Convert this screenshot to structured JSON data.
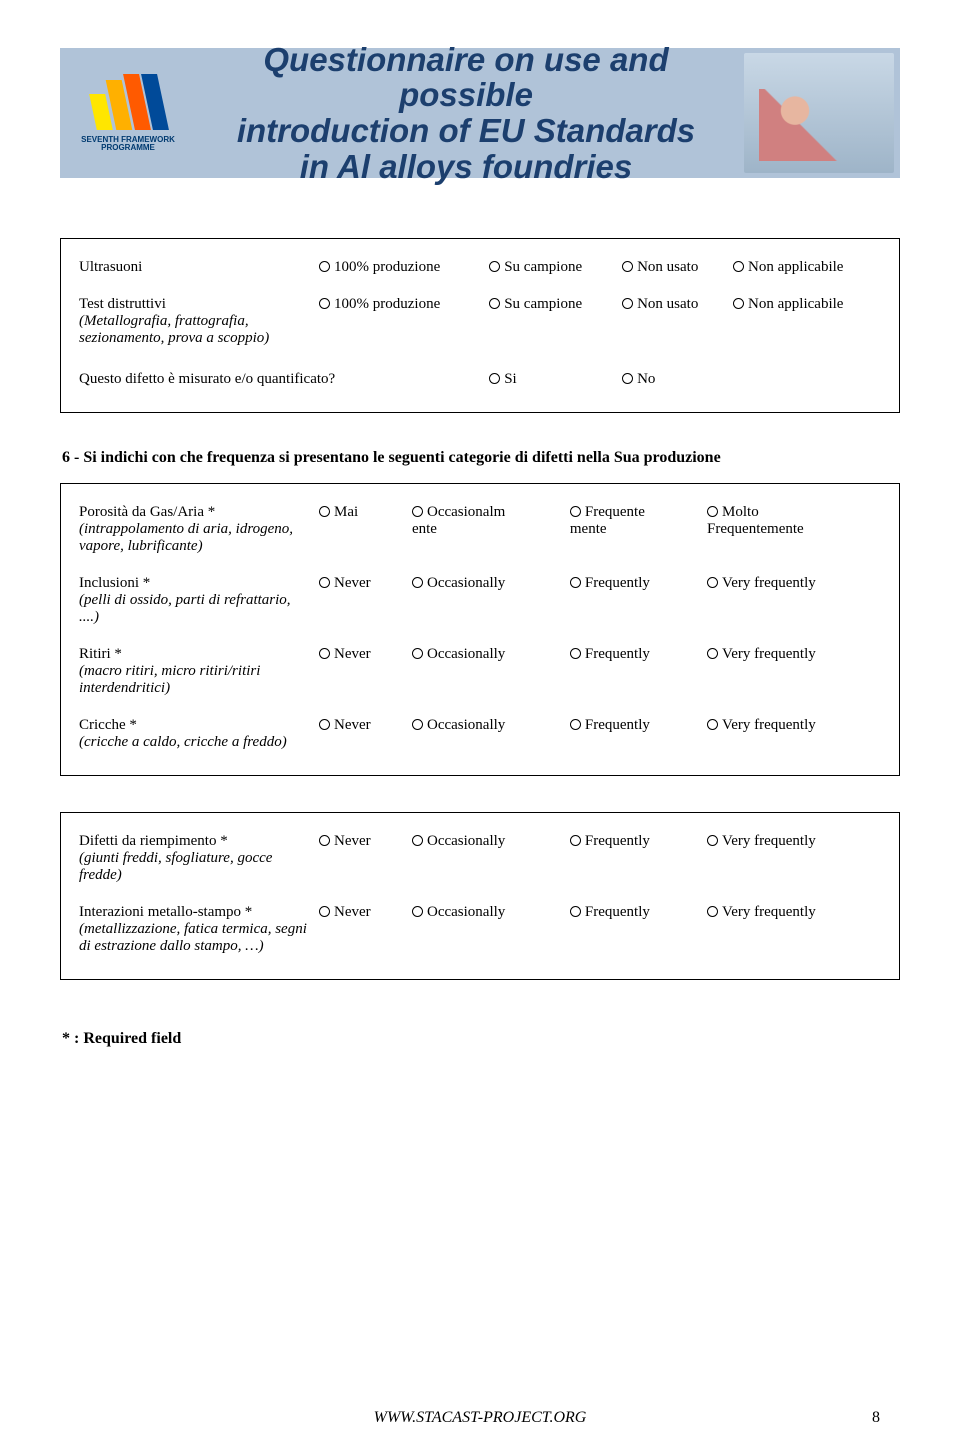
{
  "banner": {
    "line1": "Questionnaire on use and possible",
    "line2": "introduction of EU Standards",
    "line3": "in Al alloys foundries",
    "logo_line1": "SEVENTH FRAMEWORK",
    "logo_line2": "PROGRAMME"
  },
  "opts_it": {
    "c1": "100% produzione",
    "c2": "Su campione",
    "c3": "Non usato",
    "c4": "Non applicabile"
  },
  "box1": {
    "rows": [
      {
        "label": "Ultrasuoni",
        "desc": ""
      },
      {
        "label": "Test distruttivi",
        "desc": "(Metallografia, frattografia, sezionamento, prova a scoppio)"
      }
    ],
    "yn_q": "Questo difetto è misurato e/o quantificato?",
    "yes": "Si",
    "no": "No"
  },
  "section6": {
    "title": "6 - Si indichi con che frequenza si presentano le seguenti categorie di difetti nella Sua produzione",
    "row0": {
      "label": "Porosità da Gas/Aria *",
      "desc": "(intrappolamento di aria, idrogeno, vapore, lubrificante)",
      "o1": "Mai",
      "o2a": "Occasionalm",
      "o2b": "ente",
      "o3a": "Frequente",
      "o3b": "mente",
      "o4a": "Molto",
      "o4b": "Frequentemente"
    },
    "opts_en": {
      "c1": "Never",
      "c2": "Occasionally",
      "c3": "Frequently",
      "c4": "Very frequently"
    },
    "rows": [
      {
        "label": "Inclusioni *",
        "desc": "(pelli di ossido, parti di refrattario, ....)"
      },
      {
        "label": "Ritiri *",
        "desc": "(macro ritiri, micro ritiri/ritiri interdendritici)"
      },
      {
        "label": "Cricche *",
        "desc": "(cricche a caldo, cricche a freddo)"
      }
    ],
    "rows2": [
      {
        "label": "Difetti da riempimento *",
        "desc": "(giunti freddi, sfogliature, gocce fredde)"
      },
      {
        "label": "Interazioni metallo-stampo *",
        "desc": "(metallizzazione, fatica termica, segni di estrazione dallo stampo, …)"
      }
    ]
  },
  "required_note": "* : Required field",
  "footer": {
    "url": "WWW.STACAST-PROJECT.ORG",
    "page": "8"
  }
}
